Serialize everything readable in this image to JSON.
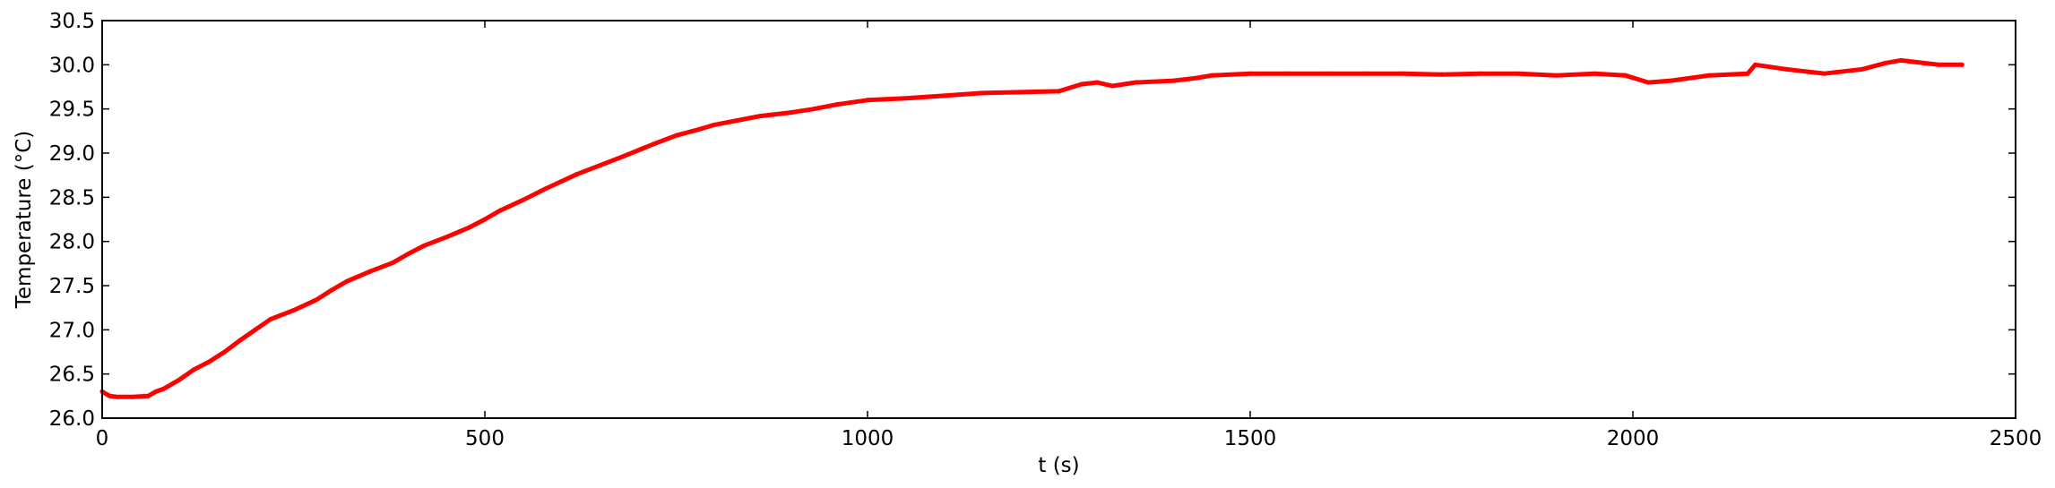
{
  "chart_data": {
    "type": "line",
    "title": "",
    "xlabel": "t (s)",
    "ylabel": "Temperature (°C)",
    "xlim": [
      0,
      2500
    ],
    "ylim": [
      26.0,
      30.5
    ],
    "x_ticks": [
      0,
      500,
      1000,
      1500,
      2000,
      2500
    ],
    "x_tick_labels": [
      "0",
      "500",
      "1000",
      "1500",
      "2000",
      "2500"
    ],
    "y_ticks": [
      26.0,
      26.5,
      27.0,
      27.5,
      28.0,
      28.5,
      29.0,
      29.5,
      30.0,
      30.5
    ],
    "y_tick_labels": [
      "26.0",
      "26.5",
      "27.0",
      "27.5",
      "28.0",
      "28.5",
      "29.0",
      "29.5",
      "30.0",
      "30.5"
    ],
    "grid": false,
    "legend": "none",
    "series": [
      {
        "color": "#ff0000",
        "x": [
          0,
          10,
          20,
          40,
          60,
          70,
          80,
          100,
          120,
          140,
          160,
          180,
          200,
          220,
          250,
          280,
          300,
          320,
          350,
          380,
          400,
          420,
          450,
          480,
          500,
          520,
          550,
          580,
          600,
          620,
          650,
          680,
          700,
          720,
          750,
          780,
          800,
          830,
          860,
          900,
          930,
          960,
          1000,
          1050,
          1100,
          1150,
          1200,
          1250,
          1280,
          1300,
          1320,
          1350,
          1400,
          1430,
          1450,
          1500,
          1550,
          1600,
          1650,
          1700,
          1750,
          1800,
          1850,
          1900,
          1950,
          1990,
          2020,
          2050,
          2100,
          2150,
          2160,
          2200,
          2250,
          2300,
          2330,
          2350,
          2380,
          2400,
          2430
        ],
        "y": [
          26.3,
          26.25,
          26.24,
          26.24,
          26.25,
          26.3,
          26.33,
          26.43,
          26.55,
          26.64,
          26.75,
          26.88,
          27.0,
          27.12,
          27.22,
          27.34,
          27.45,
          27.55,
          27.66,
          27.76,
          27.86,
          27.95,
          28.05,
          28.16,
          28.25,
          28.35,
          28.47,
          28.6,
          28.68,
          28.76,
          28.86,
          28.96,
          29.03,
          29.1,
          29.2,
          29.27,
          29.32,
          29.37,
          29.42,
          29.46,
          29.5,
          29.55,
          29.6,
          29.62,
          29.65,
          29.68,
          29.69,
          29.7,
          29.78,
          29.8,
          29.76,
          29.8,
          29.82,
          29.85,
          29.88,
          29.9,
          29.9,
          29.9,
          29.9,
          29.9,
          29.89,
          29.9,
          29.9,
          29.88,
          29.9,
          29.88,
          29.8,
          29.82,
          29.88,
          29.9,
          30.0,
          29.95,
          29.9,
          29.95,
          30.02,
          30.05,
          30.02,
          30.0,
          30.0
        ]
      }
    ]
  }
}
